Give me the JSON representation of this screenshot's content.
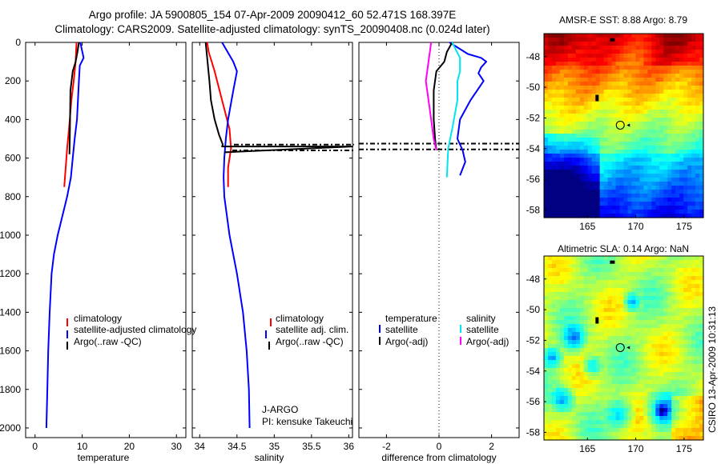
{
  "header": {
    "title_line1": "Argo profile: JA 5900805_154 07-Apr-2009 20090412_60 52.471S 168.397E",
    "title_line2": "Climatology: CARS2009. Satellite-adjusted climatology: synTS_20090408.nc (0.024d later)"
  },
  "colors": {
    "climatology": "#ff0000",
    "satellite": "#0000ff",
    "argo": "#000000",
    "satellite_salinity": "#00e5ee",
    "argo_salinity_adj": "#ff00ff"
  },
  "chart_data": [
    {
      "type": "line",
      "id": "temperature",
      "xlabel": "temperature",
      "xlim": [
        -2,
        32
      ],
      "ylim": [
        2050,
        0
      ],
      "xticks": [
        "0",
        "10",
        "20",
        "30"
      ],
      "yticks": [
        "0",
        "200",
        "400",
        "600",
        "800",
        "1000",
        "1200",
        "1400",
        "1600",
        "1800",
        "2000"
      ],
      "legend": [
        "climatology",
        "satellite-adjusted climatology",
        "Argo(..raw -QC)"
      ],
      "series": [
        {
          "name": "climatology",
          "color": "#ff0000",
          "x": [
            8.8,
            8.6,
            8.2,
            7.7,
            7.2,
            6.8,
            6.5,
            6.2
          ],
          "y": [
            0,
            100,
            200,
            300,
            450,
            550,
            650,
            750
          ]
        },
        {
          "name": "satellite-adjusted climatology",
          "color": "#0000ff",
          "x": [
            9.6,
            10.3,
            9.5,
            9.3,
            9.1,
            8.9,
            8.4,
            8.0,
            7.6,
            6.8,
            5.8,
            4.8,
            4.0,
            3.5,
            3.1,
            2.8,
            2.6,
            2.4
          ],
          "y": [
            0,
            80,
            120,
            200,
            300,
            400,
            500,
            600,
            700,
            800,
            900,
            1000,
            1100,
            1200,
            1400,
            1600,
            1800,
            2000
          ]
        },
        {
          "name": "Argo(..raw -QC)",
          "color": "#000000",
          "x": [
            9.3,
            9.0,
            8.6,
            8.0,
            7.5,
            7.4,
            7.3
          ],
          "y": [
            0,
            50,
            100,
            150,
            250,
            450,
            580
          ]
        }
      ]
    },
    {
      "type": "line",
      "id": "salinity",
      "xlabel": "salinity",
      "xlim": [
        33.9,
        36.05
      ],
      "ylim": [
        2050,
        0
      ],
      "xticks": [
        "34",
        "34.5",
        "35",
        "35.5",
        "36"
      ],
      "legend": [
        "climatology",
        "satellite adj. clim.",
        "Argo(..raw -QC)"
      ],
      "annotation": [
        "J-ARGO",
        "PI: kensuke Takeuchi"
      ],
      "series": [
        {
          "name": "climatology",
          "color": "#ff0000",
          "x": [
            34.1,
            34.12,
            34.2,
            34.3,
            34.4,
            34.42,
            34.38,
            34.38
          ],
          "y": [
            0,
            50,
            150,
            300,
            450,
            550,
            650,
            750
          ]
        },
        {
          "name": "satellite adj. clim.",
          "color": "#0000ff",
          "x": [
            34.3,
            34.45,
            34.5,
            34.45,
            34.38,
            34.35,
            34.33,
            34.32,
            34.33,
            34.4,
            34.5,
            34.58,
            34.63,
            34.66,
            34.67
          ],
          "y": [
            0,
            100,
            150,
            250,
            400,
            500,
            600,
            700,
            800,
            1000,
            1200,
            1400,
            1600,
            1800,
            2000
          ]
        },
        {
          "name": "Argo(..raw -QC)",
          "color": "#000000",
          "x": [
            34.08,
            34.1,
            34.13,
            34.15,
            34.2,
            34.26,
            34.31,
            34.3,
            36.05,
            34.33
          ],
          "y": [
            0,
            80,
            200,
            300,
            400,
            480,
            530,
            540,
            540,
            570
          ]
        }
      ]
    },
    {
      "type": "line",
      "id": "difference",
      "xlabel": "difference from climatology",
      "xlim": [
        -3.05,
        3.05
      ],
      "ylim": [
        2050,
        0
      ],
      "xticks": [
        "-2",
        "0",
        "2"
      ],
      "legend": [
        "temperature",
        "satellite",
        "Argo(-adj)",
        "salinity",
        "satellite",
        "Argo(-adj)"
      ],
      "series": [
        {
          "name": "temperature satellite",
          "color": "#0000ff",
          "x": [
            0.4,
            1.1,
            1.6,
            1.8,
            1.6,
            1.5,
            1.7,
            1.2,
            0.8,
            0.7,
            0.9,
            1.0,
            0.8
          ],
          "y": [
            0,
            60,
            80,
            100,
            130,
            160,
            200,
            300,
            400,
            500,
            560,
            620,
            690
          ]
        },
        {
          "name": "temperature Argo(-adj)",
          "color": "#000000",
          "x": [
            0.5,
            0.3,
            0.2,
            -0.1,
            -0.2,
            -0.2,
            -0.15,
            -0.1
          ],
          "y": [
            0,
            50,
            100,
            150,
            250,
            400,
            500,
            560
          ]
        },
        {
          "name": "salinity satellite",
          "color": "#00e5ee",
          "x": [
            0.5,
            0.8,
            0.8,
            0.7,
            0.7,
            0.5,
            0.35,
            0.3
          ],
          "y": [
            0,
            80,
            150,
            200,
            300,
            450,
            550,
            700
          ]
        },
        {
          "name": "salinity Argo(-adj)",
          "color": "#ff00ff",
          "x": [
            -0.3,
            -0.4,
            -0.5,
            -0.4,
            -0.3,
            -0.2,
            -0.1
          ],
          "y": [
            0,
            100,
            200,
            300,
            400,
            500,
            560
          ]
        }
      ]
    },
    {
      "type": "heatmap",
      "id": "sst_map",
      "title": "AMSR-E SST: 8.88 Argo: 8.79",
      "xticks": [
        "165",
        "170",
        "175"
      ],
      "yticks": [
        "-48",
        "-50",
        "-52",
        "-54",
        "-56",
        "-58"
      ],
      "xlim": [
        160.5,
        177
      ],
      "ylim": [
        -58.5,
        -46.5
      ],
      "profile_lon": 168.397,
      "profile_lat": -52.471
    },
    {
      "type": "heatmap",
      "id": "sla_map",
      "title": "Altimetric SLA: 0.14 Argo: NaN",
      "xticks": [
        "165",
        "170",
        "175"
      ],
      "yticks": [
        "-48",
        "-50",
        "-52",
        "-54",
        "-56",
        "-58"
      ],
      "xlim": [
        160.5,
        177
      ],
      "ylim": [
        -58.5,
        -46.5
      ],
      "profile_lon": 168.397,
      "profile_lat": -52.471
    }
  ],
  "footer": {
    "credit": "CSIRO 13-Apr-2009 10:31:13"
  }
}
